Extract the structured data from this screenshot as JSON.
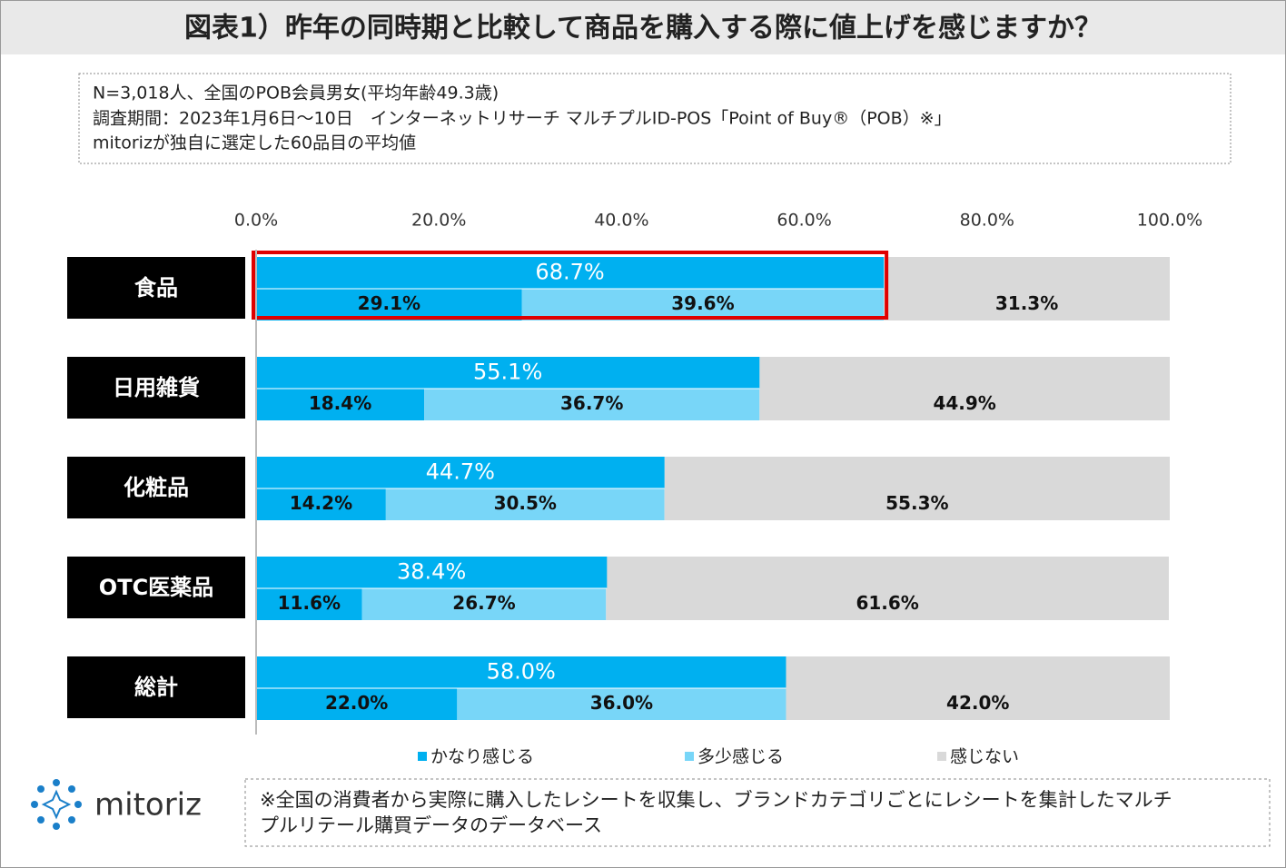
{
  "chart_data": {
    "type": "bar",
    "title": "図表1）昨年の同時期と比較して商品を購入する際に値上げを感じますか？",
    "notes": [
      "N=3,018人、全国のPOB会員男女(平均年齢49.3歳)",
      "調査期間：2023年1月6日～10日　インターネットリサーチ マルチプルID-POS「Point of Buy®（POB）※」",
      "mitorizが独自に選定した60品目の平均値"
    ],
    "categories": [
      "食品",
      "日用雑貨",
      "化粧品",
      "OTC医薬品",
      "総計"
    ],
    "series": [
      {
        "name": "かなり感じる",
        "color": "#00b0f0",
        "values": [
          29.1,
          18.4,
          14.2,
          11.6,
          22.0
        ],
        "value_labels": [
          "29.1%",
          "18.4%",
          "14.2%",
          "11.6%",
          "22.0%"
        ]
      },
      {
        "name": "多少感じる",
        "color": "#78d6f8",
        "values": [
          39.6,
          36.7,
          30.5,
          26.7,
          36.0
        ],
        "value_labels": [
          "39.6%",
          "36.7%",
          "30.5%",
          "26.7%",
          "36.0%"
        ]
      },
      {
        "name": "感じない",
        "color": "#d9d9d9",
        "values": [
          31.3,
          44.9,
          55.3,
          61.6,
          42.0
        ],
        "value_labels": [
          "31.3%",
          "44.9%",
          "55.3%",
          "61.6%",
          "42.0%"
        ]
      }
    ],
    "totals": [
      68.7,
      55.1,
      44.7,
      38.4,
      58.0
    ],
    "total_labels": [
      "68.7%",
      "55.1%",
      "44.7%",
      "38.4%",
      "58.0%"
    ],
    "xlim": [
      0,
      100
    ],
    "xticks": [
      {
        "value": 0,
        "label": "0.0%"
      },
      {
        "value": 20,
        "label": "20.0%"
      },
      {
        "value": 40,
        "label": "40.0%"
      },
      {
        "value": 60,
        "label": "60.0%"
      },
      {
        "value": 80,
        "label": "80.0%"
      },
      {
        "value": 100,
        "label": "100.0%"
      }
    ],
    "logo": "mitoriz",
    "footnote": [
      "※全国の消費者から実際に購入したレシートを収集し、ブランドカテゴリごとにレシートを集計したマルチ",
      "プルリテール購買データのデータベース"
    ]
  }
}
